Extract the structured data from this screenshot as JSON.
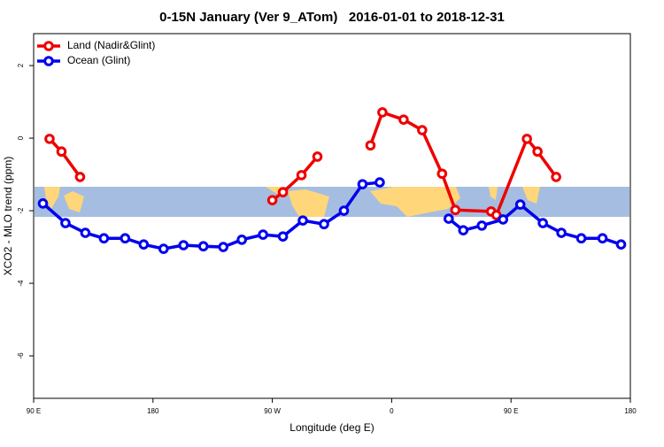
{
  "chart_data": {
    "type": "line",
    "title": "0-15N January (Ver 9_ATom)   2016-01-01 to 2018-12-31",
    "xlabel": "Longitude (deg E)",
    "ylabel": "XCO2 - MLO trend (ppm)",
    "xlim": [
      90,
      540
    ],
    "ylim": [
      -7.17,
      2.88
    ],
    "xticks": [
      {
        "value": 90,
        "label": "90 E"
      },
      180,
      {
        "value": 270,
        "label": "90 W"
      },
      {
        "value": 360,
        "label": "0"
      },
      {
        "value": 450,
        "label": "90 E"
      },
      {
        "value": 540,
        "label": "180"
      }
    ],
    "yticks": [
      2,
      0,
      -2,
      -4,
      -6
    ],
    "legend": "upper left",
    "series": [
      {
        "name": "Land (Nadir&Glint)",
        "color": "#ee0000",
        "x": [
          102,
          111,
          125,
          null,
          270,
          278,
          292,
          304,
          null,
          344,
          353,
          369,
          383,
          398,
          408,
          435,
          439,
          462,
          470,
          484
        ],
        "values": [
          -0.02,
          -0.37,
          -1.07,
          null,
          -1.71,
          -1.49,
          -1.02,
          -0.51,
          null,
          -0.2,
          0.71,
          0.51,
          0.22,
          -0.98,
          -1.98,
          -2.02,
          -2.12,
          -0.02,
          -0.37,
          -1.07
        ]
      },
      {
        "name": "Ocean (Glint)",
        "color": "#0000ee",
        "x": [
          97,
          114,
          129,
          143,
          159,
          173,
          188,
          203,
          218,
          233,
          247,
          263,
          278,
          293,
          309,
          324,
          338,
          351,
          null,
          403,
          414,
          428,
          444,
          457,
          474,
          488,
          503,
          519,
          533
        ],
        "values": [
          -1.8,
          -2.34,
          -2.61,
          -2.76,
          -2.76,
          -2.93,
          -3.05,
          -2.95,
          -2.98,
          -3.0,
          -2.8,
          -2.66,
          -2.71,
          -2.27,
          -2.37,
          -2.0,
          -1.27,
          -1.22,
          null,
          -2.22,
          -2.54,
          -2.41,
          -2.24,
          -1.83,
          -2.34,
          -2.61,
          -2.76,
          -2.76,
          -2.93
        ]
      }
    ]
  }
}
